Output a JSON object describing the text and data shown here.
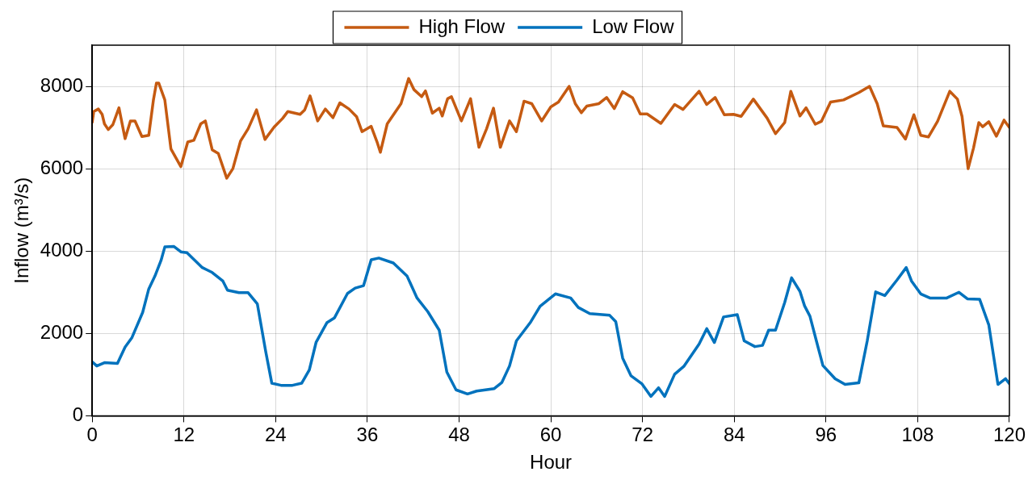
{
  "chart_data": {
    "type": "line",
    "xlabel": "Hour",
    "ylabel": "Inflow (m³/s)",
    "xlim": [
      0,
      120
    ],
    "xticks": [
      0,
      12,
      24,
      36,
      48,
      60,
      72,
      84,
      96,
      108,
      120
    ],
    "ylim": [
      0,
      9000
    ],
    "yticks": [
      0,
      2000,
      4000,
      6000,
      8000
    ],
    "grid": true,
    "legend": "top",
    "marker": "none",
    "line_style": "solid",
    "series": [
      {
        "name": "High Flow",
        "color": "#c55a11",
        "x": [
          0,
          0.2,
          0.8,
          1.3,
          1.6,
          2.1,
          2.7,
          3.5,
          4.3,
          5.0,
          5.6,
          6.5,
          7.4,
          8.0,
          8.4,
          8.7,
          9.5,
          10.3,
          11.6,
          12.5,
          13.3,
          14.2,
          14.8,
          15.7,
          16.5,
          17.6,
          18.4,
          19.4,
          20.4,
          21.5,
          22.6,
          23.8,
          24.9,
          25.6,
          27.2,
          27.8,
          28.5,
          29.5,
          30.5,
          31.5,
          32.4,
          33.6,
          34.6,
          35.3,
          36.5,
          37.3,
          37.7,
          38.6,
          40.4,
          41.4,
          42.1,
          43.1,
          43.6,
          44.5,
          45.4,
          45.8,
          46.5,
          47.0,
          48.3,
          49.5,
          50.6,
          51.6,
          52.5,
          53.4,
          54.6,
          55.5,
          56.5,
          57.5,
          58.8,
          60,
          61,
          62.4,
          63.2,
          64,
          64.7,
          66.3,
          67.3,
          68.3,
          69.4,
          70.7,
          71.7,
          72.6,
          74.4,
          76.2,
          77.3,
          79.4,
          80.4,
          81.5,
          82.7,
          83.9,
          84.9,
          86.5,
          88.3,
          89.4,
          90.6,
          91.4,
          92.6,
          93.4,
          94.6,
          95.4,
          96.6,
          98.3,
          100.3,
          101.7,
          102.7,
          103.5,
          105.3,
          106.4,
          107.5,
          108.4,
          109.4,
          110.6,
          112.2,
          113.2,
          113.8,
          114.6,
          115.3,
          116.0,
          116.5,
          117.3,
          118.3,
          119.3,
          120
        ],
        "values": [
          7130,
          7390,
          7450,
          7320,
          7090,
          6950,
          7070,
          7480,
          6730,
          7160,
          7160,
          6780,
          6810,
          7660,
          8080,
          8080,
          7670,
          6480,
          6050,
          6650,
          6690,
          7090,
          7160,
          6460,
          6370,
          5770,
          6000,
          6670,
          6970,
          7430,
          6710,
          7010,
          7220,
          7390,
          7320,
          7430,
          7770,
          7160,
          7450,
          7240,
          7600,
          7450,
          7260,
          6900,
          7030,
          6630,
          6400,
          7090,
          7580,
          8190,
          7920,
          7750,
          7890,
          7350,
          7470,
          7280,
          7700,
          7750,
          7160,
          7700,
          6520,
          6970,
          7470,
          6520,
          7160,
          6900,
          7640,
          7580,
          7160,
          7500,
          7620,
          8000,
          7580,
          7360,
          7520,
          7580,
          7730,
          7460,
          7870,
          7720,
          7330,
          7330,
          7100,
          7560,
          7440,
          7880,
          7560,
          7730,
          7310,
          7320,
          7270,
          7690,
          7230,
          6850,
          7120,
          7880,
          7280,
          7480,
          7080,
          7150,
          7620,
          7670,
          7850,
          8000,
          7580,
          7040,
          7000,
          6720,
          7310,
          6810,
          6770,
          7150,
          7880,
          7690,
          7270,
          6000,
          6500,
          7120,
          7020,
          7140,
          6790,
          7180,
          7000
        ]
      },
      {
        "name": "Low Flow",
        "color": "#0072bd",
        "x": [
          0,
          0.6,
          1.6,
          3.3,
          4.3,
          5.2,
          6.6,
          7.4,
          8.2,
          9.0,
          9.5,
          10.7,
          11.6,
          12.4,
          14.4,
          15.7,
          17.1,
          17.7,
          19.2,
          20.4,
          21.6,
          22.7,
          23.5,
          24.7,
          26.2,
          27.4,
          28.4,
          29.3,
          30.7,
          31.7,
          33.4,
          34.4,
          35.5,
          36.5,
          37.5,
          39.4,
          41.2,
          42.5,
          43.9,
          45.4,
          46.4,
          47.6,
          49.1,
          50.3,
          52.6,
          53.6,
          54.6,
          55.5,
          57.3,
          58.6,
          60.6,
          62.6,
          63.6,
          65.1,
          67.7,
          68.5,
          69.4,
          70.5,
          71.9,
          73.1,
          74.1,
          74.9,
          76.2,
          77.4,
          79.4,
          80.4,
          81.4,
          82.6,
          84.4,
          85.3,
          86.7,
          87.7,
          88.5,
          89.4,
          90.6,
          91.5,
          92.6,
          93.2,
          93.9,
          94.8,
          95.6,
          97.2,
          98.5,
          100.3,
          101.4,
          102.5,
          103.7,
          105.3,
          106.5,
          107.2,
          108.4,
          109.6,
          111.8,
          113.4,
          114.5,
          116.1,
          117.3,
          118.5,
          119.5,
          120
        ],
        "values": [
          1310,
          1210,
          1290,
          1270,
          1670,
          1900,
          2510,
          3080,
          3390,
          3770,
          4100,
          4110,
          3980,
          3960,
          3600,
          3480,
          3270,
          3050,
          2990,
          2990,
          2720,
          1560,
          790,
          740,
          740,
          790,
          1110,
          1790,
          2260,
          2380,
          2970,
          3100,
          3160,
          3790,
          3830,
          3710,
          3390,
          2860,
          2530,
          2080,
          1060,
          630,
          530,
          600,
          660,
          810,
          1210,
          1820,
          2260,
          2660,
          2960,
          2860,
          2630,
          2480,
          2440,
          2285,
          1400,
          970,
          780,
          470,
          680,
          470,
          1010,
          1200,
          1740,
          2115,
          1780,
          2400,
          2455,
          1820,
          1680,
          1710,
          2080,
          2080,
          2750,
          3350,
          3020,
          2670,
          2420,
          1780,
          1220,
          900,
          760,
          800,
          1820,
          3010,
          2920,
          3300,
          3600,
          3270,
          2960,
          2860,
          2860,
          3000,
          2840,
          2830,
          2210,
          760,
          900,
          780
        ]
      }
    ]
  }
}
